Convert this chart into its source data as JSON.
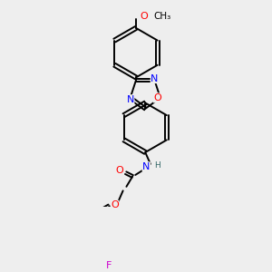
{
  "bg_color": "#eeeeee",
  "bond_color": "#000000",
  "atom_colors": {
    "O": "#ff0000",
    "N": "#0000ff",
    "F": "#cc00cc",
    "H": "#336666",
    "C": "#000000"
  },
  "font_size": 8.0,
  "line_width": 1.4,
  "dbo": 0.055,
  "figsize": [
    3.0,
    3.0
  ],
  "dpi": 100
}
